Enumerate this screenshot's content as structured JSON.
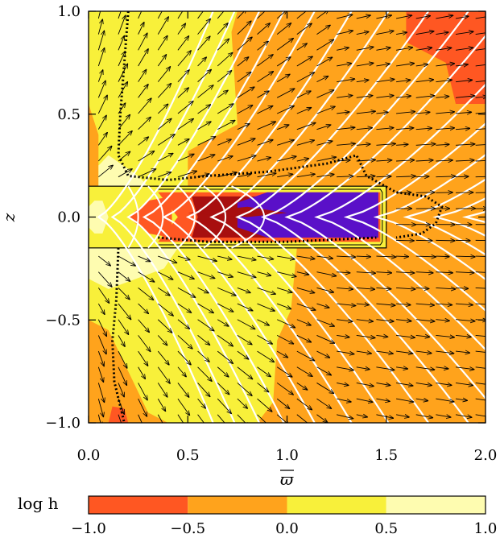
{
  "chart_data": {
    "type": "heatmap",
    "xlabel": "ϖ",
    "ylabel": "z",
    "xlim": [
      0.0,
      2.0
    ],
    "ylim": [
      -1.0,
      1.0
    ],
    "x_ticks": [
      "0.0",
      "0.5",
      "1.0",
      "1.5",
      "2.0"
    ],
    "y_ticks": [
      "−1.0",
      "−0.5",
      "0.0",
      "0.5",
      "1.0"
    ],
    "colorbar": {
      "label": "log h",
      "ticks": [
        "−1.0",
        "−0.5",
        "0.0",
        "0.5",
        "1.0"
      ],
      "levels": [
        {
          "from": -1.0,
          "to": -0.5,
          "color": "#ff5722"
        },
        {
          "from": -0.5,
          "to": 0.0,
          "color": "#ffa31c"
        },
        {
          "from": 0.0,
          "to": 0.5,
          "color": "#f8f03a"
        },
        {
          "from": 0.5,
          "to": 1.0,
          "color": "#fefcb0"
        }
      ]
    },
    "disk_region": {
      "x": [
        0.0,
        1.5
      ],
      "z": [
        -0.15,
        0.15
      ]
    },
    "inner_disk_colors": {
      "outer": "#ff5722",
      "mid": "#a80f0f",
      "core": "#5a10c8"
    },
    "field_lines": "white",
    "velocity_vectors": "black arrows",
    "boundary_contour": "dotted black"
  }
}
